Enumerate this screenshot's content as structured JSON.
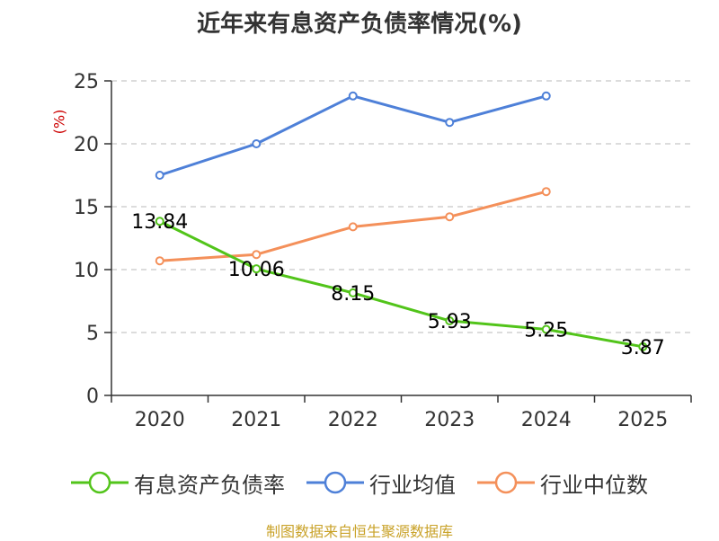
{
  "chart_data": {
    "type": "line",
    "title": "近年来有息资产负债率情况(%)",
    "ylabel": "(%)",
    "xlabel": "",
    "ylim": [
      0,
      25
    ],
    "yticks": [
      0,
      5,
      10,
      15,
      20,
      25
    ],
    "categories": [
      "2020",
      "2021",
      "2022",
      "2023",
      "2024",
      "2025"
    ],
    "grid": true,
    "legend_position": "bottom",
    "series": [
      {
        "name": "有息资产负债率",
        "color": "#52c41a",
        "values": [
          13.84,
          10.06,
          8.15,
          5.93,
          5.25,
          3.87
        ],
        "show_labels": true
      },
      {
        "name": "行业均值",
        "color": "#4e80d8",
        "values": [
          17.5,
          20.0,
          23.8,
          21.7,
          23.8,
          null
        ],
        "show_labels": false
      },
      {
        "name": "行业中位数",
        "color": "#f4905a",
        "values": [
          10.7,
          11.2,
          13.4,
          14.2,
          16.2,
          null
        ],
        "show_labels": false
      }
    ],
    "source": "制图数据来自恒生聚源数据库"
  }
}
